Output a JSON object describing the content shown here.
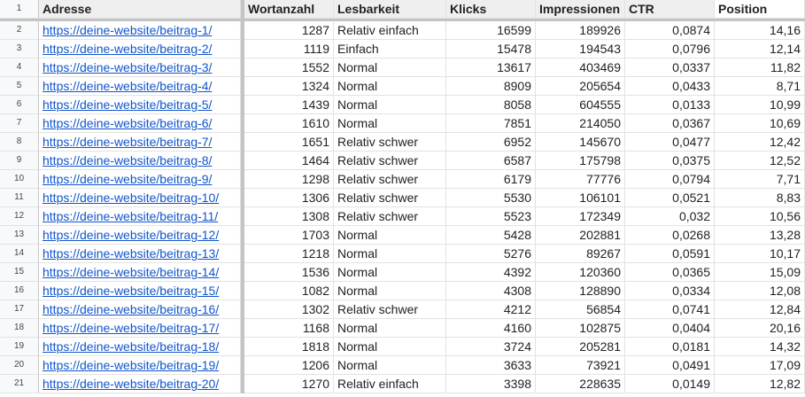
{
  "sheet": {
    "header_row_number": "1",
    "columns": [
      "Adresse",
      "Wortanzahl",
      "Lesbarkeit",
      "Klicks",
      "Impressionen",
      "CTR",
      "Position"
    ],
    "link_color": "#1155cc",
    "rows": [
      {
        "n": "2",
        "url": "https://deine-website/beitrag-1/",
        "words": "1287",
        "read": "Relativ einfach",
        "clicks": "16599",
        "impr": "189926",
        "ctr": "0,0874",
        "pos": "14,16"
      },
      {
        "n": "3",
        "url": "https://deine-website/beitrag-2/",
        "words": "1119",
        "read": "Einfach",
        "clicks": "15478",
        "impr": "194543",
        "ctr": "0,0796",
        "pos": "12,14"
      },
      {
        "n": "4",
        "url": "https://deine-website/beitrag-3/",
        "words": "1552",
        "read": "Normal",
        "clicks": "13617",
        "impr": "403469",
        "ctr": "0,0337",
        "pos": "11,82"
      },
      {
        "n": "5",
        "url": "https://deine-website/beitrag-4/",
        "words": "1324",
        "read": "Normal",
        "clicks": "8909",
        "impr": "205654",
        "ctr": "0,0433",
        "pos": "8,71"
      },
      {
        "n": "6",
        "url": "https://deine-website/beitrag-5/",
        "words": "1439",
        "read": "Normal",
        "clicks": "8058",
        "impr": "604555",
        "ctr": "0,0133",
        "pos": "10,99"
      },
      {
        "n": "7",
        "url": "https://deine-website/beitrag-6/",
        "words": "1610",
        "read": "Normal",
        "clicks": "7851",
        "impr": "214050",
        "ctr": "0,0367",
        "pos": "10,69"
      },
      {
        "n": "8",
        "url": "https://deine-website/beitrag-7/",
        "words": "1651",
        "read": "Relativ schwer",
        "clicks": "6952",
        "impr": "145670",
        "ctr": "0,0477",
        "pos": "12,42"
      },
      {
        "n": "9",
        "url": "https://deine-website/beitrag-8/",
        "words": "1464",
        "read": "Relativ schwer",
        "clicks": "6587",
        "impr": "175798",
        "ctr": "0,0375",
        "pos": "12,52"
      },
      {
        "n": "10",
        "url": "https://deine-website/beitrag-9/",
        "words": "1298",
        "read": "Relativ schwer",
        "clicks": "6179",
        "impr": "77776",
        "ctr": "0,0794",
        "pos": "7,71"
      },
      {
        "n": "11",
        "url": "https://deine-website/beitrag-10/",
        "words": "1306",
        "read": "Relativ schwer",
        "clicks": "5530",
        "impr": "106101",
        "ctr": "0,0521",
        "pos": "8,83"
      },
      {
        "n": "12",
        "url": "https://deine-website/beitrag-11/",
        "words": "1308",
        "read": "Relativ schwer",
        "clicks": "5523",
        "impr": "172349",
        "ctr": "0,032",
        "pos": "10,56"
      },
      {
        "n": "13",
        "url": "https://deine-website/beitrag-12/",
        "words": "1703",
        "read": "Normal",
        "clicks": "5428",
        "impr": "202881",
        "ctr": "0,0268",
        "pos": "13,28"
      },
      {
        "n": "14",
        "url": "https://deine-website/beitrag-13/",
        "words": "1218",
        "read": "Normal",
        "clicks": "5276",
        "impr": "89267",
        "ctr": "0,0591",
        "pos": "10,17"
      },
      {
        "n": "15",
        "url": "https://deine-website/beitrag-14/",
        "words": "1536",
        "read": "Normal",
        "clicks": "4392",
        "impr": "120360",
        "ctr": "0,0365",
        "pos": "15,09"
      },
      {
        "n": "16",
        "url": "https://deine-website/beitrag-15/",
        "words": "1082",
        "read": "Normal",
        "clicks": "4308",
        "impr": "128890",
        "ctr": "0,0334",
        "pos": "12,08"
      },
      {
        "n": "17",
        "url": "https://deine-website/beitrag-16/",
        "words": "1302",
        "read": "Relativ schwer",
        "clicks": "4212",
        "impr": "56854",
        "ctr": "0,0741",
        "pos": "12,84"
      },
      {
        "n": "18",
        "url": "https://deine-website/beitrag-17/",
        "words": "1168",
        "read": "Normal",
        "clicks": "4160",
        "impr": "102875",
        "ctr": "0,0404",
        "pos": "20,16"
      },
      {
        "n": "19",
        "url": "https://deine-website/beitrag-18/",
        "words": "1818",
        "read": "Normal",
        "clicks": "3724",
        "impr": "205281",
        "ctr": "0,0181",
        "pos": "14,32"
      },
      {
        "n": "20",
        "url": "https://deine-website/beitrag-19/",
        "words": "1206",
        "read": "Normal",
        "clicks": "3633",
        "impr": "73921",
        "ctr": "0,0491",
        "pos": "17,09"
      },
      {
        "n": "21",
        "url": "https://deine-website/beitrag-20/",
        "words": "1270",
        "read": "Relativ einfach",
        "clicks": "3398",
        "impr": "228635",
        "ctr": "0,0149",
        "pos": "12,82"
      }
    ]
  }
}
